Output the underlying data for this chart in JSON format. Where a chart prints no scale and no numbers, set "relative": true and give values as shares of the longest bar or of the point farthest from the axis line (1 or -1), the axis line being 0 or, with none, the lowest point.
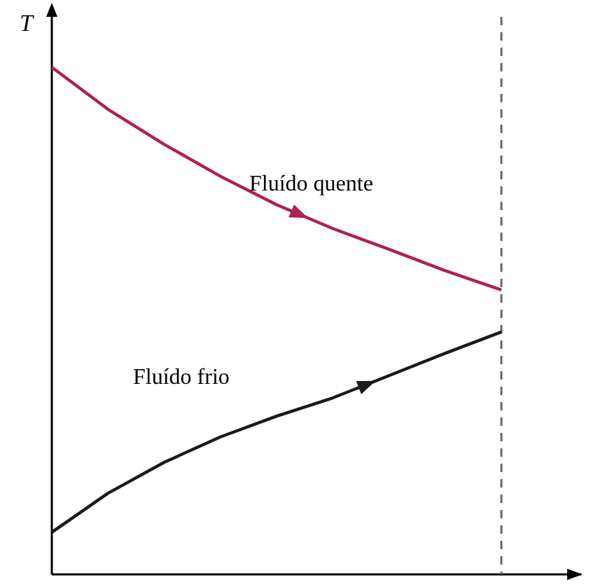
{
  "chart_data": {
    "type": "line",
    "ylabel": "T",
    "relative": true,
    "categories": [
      null,
      null,
      null,
      null,
      null,
      null,
      null,
      null,
      null
    ],
    "tick_labels": false,
    "line_style": "solid",
    "marker": "none",
    "series": [
      {
        "name": "Fluído quente",
        "color": "#b01f55",
        "values": [
          1,
          0.917,
          0.848,
          0.785,
          0.729,
          0.682,
          0.641,
          0.599,
          0.561
        ]
      },
      {
        "name": "Fluído frio",
        "color": "#1a1a1a",
        "values": [
          0.083,
          0.16,
          0.221,
          0.271,
          0.312,
          0.348,
          0.392,
          0.436,
          0.478
        ]
      }
    ]
  }
}
